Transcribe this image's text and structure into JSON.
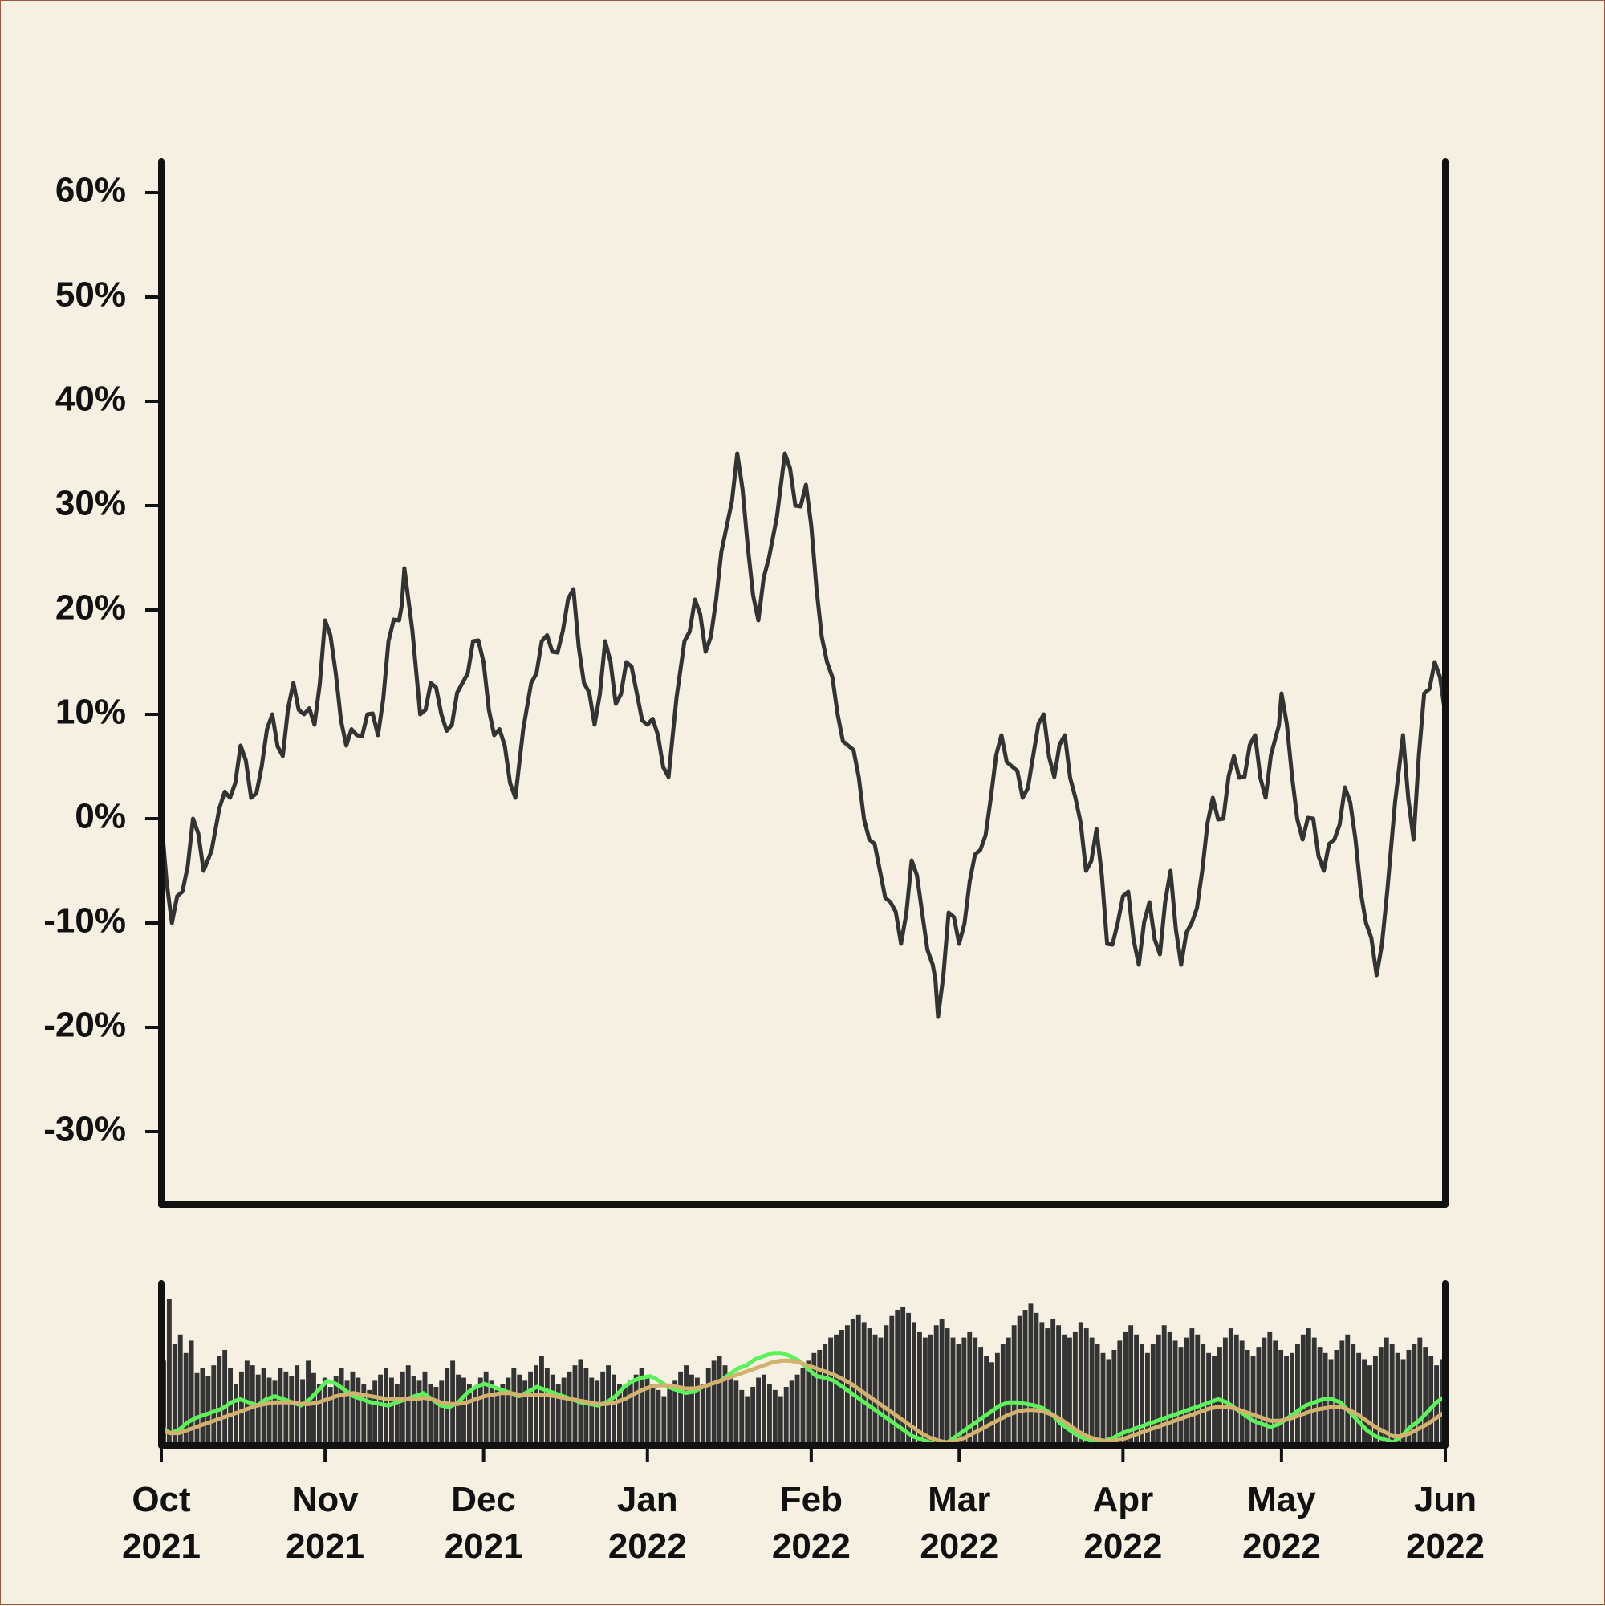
{
  "chart_data": [
    {
      "type": "line",
      "name": "price-panel",
      "title": "",
      "xlabel": "",
      "ylabel": "",
      "x_start": "2021-10-01",
      "x_end": "2022-06-01",
      "ylim": [
        -0.37,
        0.63
      ],
      "y_ticks": [
        {
          "value": 0.6,
          "label": "60%"
        },
        {
          "value": 0.5,
          "label": "50%"
        },
        {
          "value": 0.4,
          "label": "40%"
        },
        {
          "value": 0.3,
          "label": "30%"
        },
        {
          "value": 0.2,
          "label": "20%"
        },
        {
          "value": 0.1,
          "label": "10%"
        },
        {
          "value": 0.0,
          "label": "0%"
        },
        {
          "value": -0.1,
          "label": "-10%"
        },
        {
          "value": -0.2,
          "label": "-20%"
        },
        {
          "value": -0.3,
          "label": "-30%"
        }
      ],
      "grid": false,
      "color": "#333333",
      "series": [
        {
          "points": [
            [
              "2021-10-01",
              0.0
            ],
            [
              "2021-10-03",
              -0.1
            ],
            [
              "2021-10-05",
              -0.07
            ],
            [
              "2021-10-07",
              0.0
            ],
            [
              "2021-10-09",
              -0.05
            ],
            [
              "2021-10-12",
              0.01
            ],
            [
              "2021-10-14",
              0.02
            ],
            [
              "2021-10-16",
              0.07
            ],
            [
              "2021-10-18",
              0.02
            ],
            [
              "2021-10-20",
              0.05
            ],
            [
              "2021-10-22",
              0.1
            ],
            [
              "2021-10-24",
              0.06
            ],
            [
              "2021-10-26",
              0.13
            ],
            [
              "2021-10-28",
              0.1
            ],
            [
              "2021-10-30",
              0.09
            ],
            [
              "2021-11-01",
              0.19
            ],
            [
              "2021-11-03",
              0.14
            ],
            [
              "2021-11-05",
              0.07
            ],
            [
              "2021-11-07",
              0.08
            ],
            [
              "2021-11-09",
              0.1
            ],
            [
              "2021-11-11",
              0.08
            ],
            [
              "2021-11-13",
              0.17
            ],
            [
              "2021-11-15",
              0.19
            ],
            [
              "2021-11-16",
              0.24
            ],
            [
              "2021-11-19",
              0.1
            ],
            [
              "2021-11-21",
              0.13
            ],
            [
              "2021-11-23",
              0.1
            ],
            [
              "2021-11-25",
              0.09
            ],
            [
              "2021-11-27",
              0.13
            ],
            [
              "2021-11-29",
              0.17
            ],
            [
              "2021-12-01",
              0.15
            ],
            [
              "2021-12-03",
              0.08
            ],
            [
              "2021-12-05",
              0.07
            ],
            [
              "2021-12-07",
              0.02
            ],
            [
              "2021-12-10",
              0.13
            ],
            [
              "2021-12-12",
              0.17
            ],
            [
              "2021-12-14",
              0.16
            ],
            [
              "2021-12-16",
              0.18
            ],
            [
              "2021-12-18",
              0.22
            ],
            [
              "2021-12-20",
              0.13
            ],
            [
              "2021-12-22",
              0.09
            ],
            [
              "2021-12-24",
              0.17
            ],
            [
              "2021-12-26",
              0.11
            ],
            [
              "2021-12-28",
              0.15
            ],
            [
              "2021-12-30",
              0.12
            ],
            [
              "2022-01-01",
              0.09
            ],
            [
              "2022-01-03",
              0.08
            ],
            [
              "2022-01-05",
              0.04
            ],
            [
              "2022-01-08",
              0.17
            ],
            [
              "2022-01-10",
              0.21
            ],
            [
              "2022-01-12",
              0.16
            ],
            [
              "2022-01-14",
              0.21
            ],
            [
              "2022-01-16",
              0.28
            ],
            [
              "2022-01-18",
              0.35
            ],
            [
              "2022-01-20",
              0.26
            ],
            [
              "2022-01-22",
              0.19
            ],
            [
              "2022-01-24",
              0.25
            ],
            [
              "2022-01-27",
              0.35
            ],
            [
              "2022-01-29",
              0.3
            ],
            [
              "2022-01-31",
              0.32
            ]
          ]
        }
      ]
    },
    {
      "type": "bar",
      "name": "volume-panel",
      "title": "",
      "xlabel": "",
      "ylabel": "",
      "x_start": "2021-10-01",
      "x_end": "2022-06-01",
      "ylim": [
        0,
        1
      ],
      "bar_color": "#333333",
      "series": [
        {
          "name": "",
          "color": "#333333",
          "values": [
            0.55,
            0.95,
            0.66,
            0.72,
            0.6,
            0.68,
            0.47,
            0.5,
            0.45,
            0.52,
            0.58,
            0.62,
            0.5,
            0.4,
            0.48,
            0.55,
            0.52,
            0.46,
            0.5,
            0.44,
            0.42,
            0.5,
            0.48,
            0.45,
            0.52,
            0.43,
            0.55,
            0.47,
            0.4,
            0.44,
            0.38,
            0.45,
            0.5,
            0.42,
            0.48,
            0.44,
            0.4,
            0.36,
            0.42,
            0.46,
            0.5,
            0.44,
            0.4,
            0.48,
            0.52,
            0.45,
            0.42,
            0.48,
            0.4,
            0.38,
            0.42,
            0.5,
            0.55,
            0.46,
            0.44,
            0.4,
            0.38,
            0.44,
            0.48,
            0.42,
            0.36,
            0.4,
            0.44,
            0.5,
            0.46,
            0.42,
            0.48,
            0.52,
            0.58,
            0.5,
            0.46,
            0.4,
            0.44,
            0.48,
            0.52,
            0.56,
            0.5,
            0.44,
            0.42,
            0.48,
            0.52,
            0.46,
            0.4,
            0.38,
            0.42,
            0.46,
            0.5,
            0.44,
            0.4,
            0.36,
            0.32,
            0.38,
            0.42,
            0.48,
            0.52,
            0.46,
            0.44,
            0.4,
            0.5,
            0.55,
            0.58,
            0.52,
            0.46,
            0.42,
            0.36,
            0.32,
            0.38,
            0.44,
            0.46,
            0.4,
            0.36,
            0.32,
            0.38,
            0.42,
            0.46,
            0.5,
            0.55,
            0.6,
            0.62,
            0.66,
            0.7,
            0.72,
            0.75,
            0.78,
            0.82,
            0.85,
            0.8,
            0.76,
            0.72,
            0.7,
            0.78,
            0.84,
            0.88,
            0.9,
            0.86,
            0.8,
            0.74,
            0.7,
            0.72,
            0.78,
            0.82,
            0.76,
            0.7,
            0.66,
            0.7,
            0.74,
            0.7,
            0.64,
            0.58,
            0.54,
            0.6,
            0.66,
            0.7,
            0.78,
            0.84,
            0.88,
            0.92,
            0.86,
            0.8,
            0.76,
            0.82,
            0.78,
            0.72,
            0.7,
            0.74,
            0.8,
            0.76,
            0.7,
            0.66,
            0.6,
            0.56,
            0.62,
            0.68,
            0.74,
            0.78,
            0.72,
            0.66,
            0.6,
            0.66,
            0.72,
            0.78,
            0.74,
            0.68,
            0.64,
            0.7,
            0.76,
            0.72,
            0.66,
            0.6,
            0.58,
            0.64,
            0.7,
            0.76,
            0.72,
            0.68,
            0.62,
            0.58,
            0.64,
            0.7,
            0.74,
            0.68,
            0.62,
            0.58,
            0.6,
            0.66,
            0.72,
            0.76,
            0.7,
            0.64,
            0.6,
            0.56,
            0.62,
            0.68,
            0.72,
            0.66,
            0.6,
            0.56,
            0.52,
            0.58,
            0.64,
            0.7,
            0.66,
            0.6,
            0.56,
            0.62,
            0.66,
            0.7,
            0.64,
            0.58,
            0.52,
            0.56
          ]
        },
        {
          "name": "",
          "type": "line",
          "color": "#5cf25c",
          "values": [
            0.12,
            0.08,
            0.1,
            0.15,
            0.18,
            0.2,
            0.22,
            0.24,
            0.28,
            0.3,
            0.28,
            0.26,
            0.3,
            0.32,
            0.3,
            0.28,
            0.26,
            0.3,
            0.36,
            0.42,
            0.4,
            0.36,
            0.32,
            0.3,
            0.28,
            0.27,
            0.26,
            0.28,
            0.3,
            0.32,
            0.34,
            0.3,
            0.26,
            0.25,
            0.28,
            0.34,
            0.38,
            0.4,
            0.38,
            0.36,
            0.34,
            0.32,
            0.35,
            0.38,
            0.36,
            0.34,
            0.32,
            0.3,
            0.28,
            0.27,
            0.26,
            0.28,
            0.32,
            0.38,
            0.42,
            0.44,
            0.45,
            0.42,
            0.38,
            0.36,
            0.34,
            0.35,
            0.38,
            0.4,
            0.42,
            0.46,
            0.5,
            0.52,
            0.56,
            0.58,
            0.6,
            0.6,
            0.58,
            0.55,
            0.5,
            0.45,
            0.44,
            0.42,
            0.38,
            0.34,
            0.3,
            0.26,
            0.22,
            0.18,
            0.14,
            0.1,
            0.06,
            0.04,
            0.02,
            0.0,
            0.02,
            0.06,
            0.1,
            0.14,
            0.18,
            0.22,
            0.26,
            0.28,
            0.28,
            0.27,
            0.26,
            0.24,
            0.2,
            0.14,
            0.1,
            0.06,
            0.04,
            0.02,
            0.03,
            0.05,
            0.08,
            0.1,
            0.12,
            0.14,
            0.16,
            0.18,
            0.2,
            0.22,
            0.24,
            0.26,
            0.28,
            0.3,
            0.28,
            0.24,
            0.2,
            0.16,
            0.14,
            0.12,
            0.14,
            0.18,
            0.22,
            0.26,
            0.28,
            0.3,
            0.3,
            0.28,
            0.22,
            0.16,
            0.1,
            0.06,
            0.04,
            0.02,
            0.06,
            0.12,
            0.16,
            0.22,
            0.28,
            0.32
          ]
        },
        {
          "name": "",
          "type": "line",
          "color": "#d2b26e",
          "values": [
            0.1,
            0.08,
            0.08,
            0.1,
            0.12,
            0.14,
            0.16,
            0.18,
            0.2,
            0.22,
            0.24,
            0.26,
            0.27,
            0.28,
            0.28,
            0.28,
            0.27,
            0.27,
            0.28,
            0.3,
            0.32,
            0.33,
            0.34,
            0.33,
            0.32,
            0.31,
            0.3,
            0.3,
            0.3,
            0.3,
            0.31,
            0.3,
            0.28,
            0.27,
            0.27,
            0.28,
            0.3,
            0.32,
            0.33,
            0.34,
            0.34,
            0.33,
            0.33,
            0.33,
            0.33,
            0.32,
            0.31,
            0.3,
            0.29,
            0.28,
            0.27,
            0.27,
            0.28,
            0.3,
            0.33,
            0.36,
            0.38,
            0.39,
            0.39,
            0.38,
            0.37,
            0.37,
            0.38,
            0.4,
            0.42,
            0.44,
            0.46,
            0.48,
            0.5,
            0.52,
            0.54,
            0.55,
            0.55,
            0.54,
            0.52,
            0.5,
            0.48,
            0.46,
            0.43,
            0.4,
            0.36,
            0.32,
            0.28,
            0.24,
            0.2,
            0.16,
            0.12,
            0.08,
            0.05,
            0.03,
            0.02,
            0.03,
            0.05,
            0.08,
            0.11,
            0.14,
            0.17,
            0.2,
            0.22,
            0.23,
            0.23,
            0.22,
            0.2,
            0.17,
            0.13,
            0.09,
            0.06,
            0.04,
            0.03,
            0.03,
            0.04,
            0.06,
            0.08,
            0.1,
            0.12,
            0.14,
            0.16,
            0.18,
            0.2,
            0.22,
            0.24,
            0.25,
            0.25,
            0.24,
            0.22,
            0.2,
            0.18,
            0.16,
            0.16,
            0.17,
            0.19,
            0.21,
            0.23,
            0.24,
            0.25,
            0.25,
            0.23,
            0.2,
            0.16,
            0.12,
            0.09,
            0.06,
            0.06,
            0.08,
            0.11,
            0.14,
            0.18,
            0.22
          ]
        }
      ]
    }
  ],
  "x_axis": {
    "ticks": [
      {
        "date": "2021-10-01",
        "month": "Oct",
        "year": "2021"
      },
      {
        "date": "2021-11-01",
        "month": "Nov",
        "year": "2021"
      },
      {
        "date": "2021-12-01",
        "month": "Dec",
        "year": "2021"
      },
      {
        "date": "2022-01-01",
        "month": "Jan",
        "year": "2022"
      },
      {
        "date": "2022-02-01",
        "month": "Feb",
        "year": "2022"
      },
      {
        "date": "2022-03-01",
        "month": "Mar",
        "year": "2022"
      },
      {
        "date": "2022-04-01",
        "month": "Apr",
        "year": "2022"
      },
      {
        "date": "2022-05-01",
        "month": "May",
        "year": "2022"
      },
      {
        "date": "2022-06-01",
        "month": "Jun",
        "year": "2022"
      }
    ]
  },
  "colors": {
    "background": "#f5f0e1",
    "axis": "#111111",
    "price_line": "#333333",
    "volume_bars": "#333333",
    "ma_fast": "#5cf25c",
    "ma_slow": "#d2b26e"
  }
}
